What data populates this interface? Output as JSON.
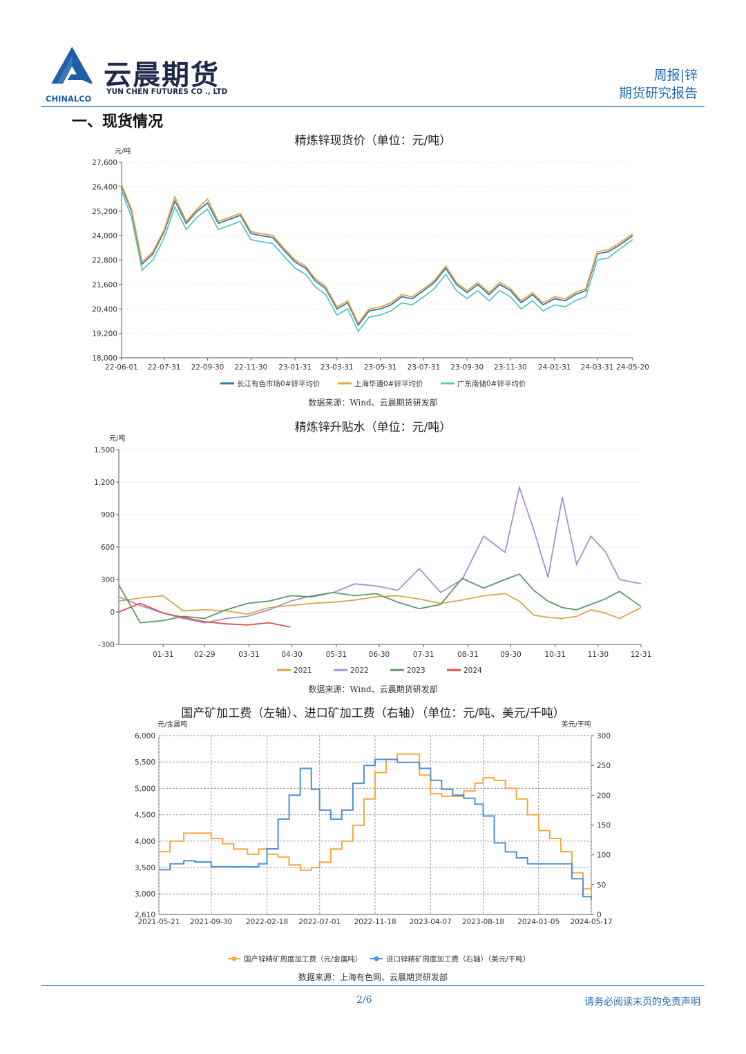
{
  "header": {
    "brand_cn": "云晨期货",
    "brand_en": "YUN CHEN FUTURES CO ., LTD",
    "brand_parent": "CHINALCO",
    "report_type": "周报|锌",
    "report_name": "期货研究报告"
  },
  "section_title": "一、现货情况",
  "charts": {
    "c1": {
      "title": "精炼锌现货价（单位：元/吨）",
      "source": "数据来源：Wind、云晨期货研发部"
    },
    "c2": {
      "title": "精炼锌升贴水（单位：元/吨）",
      "source": "数据来源：Wind、云晨期货研发部"
    },
    "c3": {
      "title": "国产矿加工费（左轴）、进口矿加工费（右轴）（单位：元/吨、美元/千吨）",
      "source": "数据来源：上海有色网、云晨期货研发部"
    }
  },
  "footer": {
    "page": "2/6",
    "note": "请务必阅读末页的免责声明"
  },
  "chart_data": [
    {
      "type": "line",
      "title": "精炼锌现货价（单位：元/吨）",
      "yunit": "元/吨",
      "ylim": [
        18000,
        27600
      ],
      "yticks": [
        18000,
        19200,
        20400,
        21600,
        22800,
        24000,
        25200,
        26400,
        27600
      ],
      "x_tick_labels": [
        "22-06-01",
        "22-07-31",
        "22-09-30",
        "22-11-30",
        "23-01-31",
        "23-03-31",
        "23-05-31",
        "23-07-31",
        "23-09-30",
        "23-11-30",
        "24-01-31",
        "24-03-31",
        "24-05-20"
      ],
      "x_dates": [
        "2022-06-01",
        "2022-06-15",
        "2022-06-30",
        "2022-07-15",
        "2022-07-31",
        "2022-08-15",
        "2022-08-31",
        "2022-09-15",
        "2022-09-30",
        "2022-10-15",
        "2022-10-31",
        "2022-11-15",
        "2022-11-30",
        "2022-12-15",
        "2022-12-31",
        "2023-01-15",
        "2023-01-31",
        "2023-02-15",
        "2023-02-28",
        "2023-03-15",
        "2023-03-31",
        "2023-04-15",
        "2023-04-30",
        "2023-05-15",
        "2023-05-31",
        "2023-06-15",
        "2023-06-30",
        "2023-07-15",
        "2023-07-31",
        "2023-08-15",
        "2023-08-31",
        "2023-09-15",
        "2023-09-30",
        "2023-10-15",
        "2023-10-31",
        "2023-11-15",
        "2023-11-30",
        "2023-12-15",
        "2023-12-31",
        "2024-01-15",
        "2024-01-31",
        "2024-02-15",
        "2024-02-29",
        "2024-03-15",
        "2024-03-31",
        "2024-04-15",
        "2024-04-30",
        "2024-05-20"
      ],
      "series": [
        {
          "name": "长江有色市场0#锌平均价",
          "color": "#2a7ab5",
          "values": [
            26400,
            25200,
            22600,
            23100,
            24200,
            25700,
            24600,
            25200,
            25600,
            24600,
            24800,
            25000,
            24100,
            24000,
            23900,
            23300,
            22700,
            22400,
            21800,
            21400,
            20400,
            20700,
            19600,
            20300,
            20400,
            20600,
            21000,
            20900,
            21300,
            21700,
            22400,
            21600,
            21200,
            21600,
            21100,
            21600,
            21300,
            20700,
            21100,
            20600,
            20900,
            20800,
            21100,
            21300,
            23100,
            23200,
            23500,
            24000
          ]
        },
        {
          "name": "上海华通0#锌平均价",
          "color": "#f2a23a",
          "values": [
            26500,
            25300,
            22700,
            23200,
            24300,
            25900,
            24700,
            25300,
            25800,
            24700,
            24900,
            25100,
            24200,
            24100,
            24000,
            23400,
            22800,
            22500,
            21900,
            21500,
            20500,
            20800,
            19700,
            20400,
            20500,
            20700,
            21100,
            21000,
            21400,
            21800,
            22500,
            21700,
            21300,
            21700,
            21200,
            21700,
            21400,
            20800,
            21200,
            20700,
            21000,
            20900,
            21200,
            21400,
            23200,
            23300,
            23600,
            24100
          ]
        },
        {
          "name": "广东南储0#锌平均价",
          "color": "#5cc6c0",
          "values": [
            26200,
            24900,
            22300,
            22800,
            23900,
            25400,
            24300,
            24900,
            25300,
            24300,
            24500,
            24700,
            23800,
            23700,
            23600,
            23000,
            22400,
            22100,
            21500,
            21100,
            20100,
            20400,
            19300,
            20000,
            20100,
            20300,
            20700,
            20600,
            21000,
            21400,
            22100,
            21300,
            20900,
            21300,
            20800,
            21300,
            21000,
            20400,
            20800,
            20300,
            20600,
            20500,
            20800,
            21000,
            22800,
            22900,
            23300,
            23800
          ]
        }
      ]
    },
    {
      "type": "line",
      "title": "精炼锌升贴水（单位：元/吨）",
      "yunit": "元/吨",
      "ylim": [
        -300,
        1500
      ],
      "yticks": [
        -300,
        0,
        300,
        600,
        900,
        1200,
        1500
      ],
      "x_tick_labels": [
        "01-31",
        "02-29",
        "03-31",
        "04-30",
        "05-31",
        "06-30",
        "07-31",
        "08-31",
        "09-30",
        "10-31",
        "11-30",
        "12-31"
      ],
      "x_days": [
        0,
        15,
        31,
        45,
        60,
        75,
        90,
        105,
        120,
        135,
        150,
        165,
        180,
        195,
        210,
        225,
        240,
        255,
        270,
        280,
        290,
        300,
        310,
        320,
        330,
        340,
        350,
        365
      ],
      "series": [
        {
          "name": "2021",
          "color": "#d4a843",
          "values": [
            100,
            130,
            150,
            10,
            20,
            10,
            -20,
            40,
            60,
            80,
            90,
            110,
            140,
            150,
            120,
            80,
            110,
            150,
            170,
            100,
            -30,
            -50,
            -60,
            -40,
            20,
            -10,
            -60,
            40
          ]
        },
        {
          "name": "2022",
          "color": "#a88dd0",
          "values": [
            140,
            60,
            -10,
            -60,
            -100,
            -60,
            -40,
            20,
            100,
            150,
            180,
            260,
            240,
            200,
            400,
            180,
            300,
            700,
            550,
            1150,
            760,
            320,
            1060,
            440,
            700,
            560,
            300,
            260
          ]
        },
        {
          "name": "2023",
          "color": "#5a9a62",
          "values": [
            250,
            -100,
            -80,
            -40,
            -60,
            20,
            80,
            100,
            150,
            140,
            180,
            150,
            170,
            90,
            30,
            70,
            310,
            220,
            300,
            350,
            200,
            100,
            40,
            20,
            70,
            120,
            190,
            50
          ]
        },
        {
          "name": "2024",
          "color": "#e05050",
          "values": [
            0,
            80,
            -10,
            -50,
            -90,
            -110,
            -120,
            -100,
            -140,
            null,
            null,
            null,
            null,
            null,
            null,
            null,
            null,
            null,
            null,
            null,
            null,
            null,
            null,
            null,
            null,
            null,
            null,
            null
          ]
        }
      ]
    },
    {
      "type": "line",
      "title": "国产矿加工费（左轴）、进口矿加工费（右轴）（单位：元/吨、美元/千吨）",
      "yunit_left": "元/金属吨",
      "yunit_right": "美元/干吨",
      "ylim_left": [
        2610,
        6000
      ],
      "yticks_left": [
        2610,
        3000,
        3500,
        4000,
        4500,
        5000,
        5500,
        6000
      ],
      "ylim_right": [
        0,
        300
      ],
      "yticks_right": [
        0,
        50,
        100,
        150,
        200,
        250,
        300
      ],
      "x_tick_labels": [
        "2021-05-21",
        "2021-09-30",
        "2022-02-18",
        "2022-07-01",
        "2022-11-18",
        "2023-04-07",
        "2023-08-18",
        "2024-01-05",
        "2024-05-17"
      ],
      "x_dates": [
        "2021-05-21",
        "2021-06-18",
        "2021-07-23",
        "2021-08-20",
        "2021-09-30",
        "2021-10-29",
        "2021-11-26",
        "2021-12-31",
        "2022-01-28",
        "2022-02-18",
        "2022-03-18",
        "2022-04-15",
        "2022-05-13",
        "2022-06-10",
        "2022-07-01",
        "2022-07-29",
        "2022-08-26",
        "2022-09-23",
        "2022-10-21",
        "2022-11-18",
        "2022-12-16",
        "2023-01-13",
        "2023-02-10",
        "2023-03-10",
        "2023-04-07",
        "2023-05-05",
        "2023-06-02",
        "2023-06-30",
        "2023-07-28",
        "2023-08-18",
        "2023-09-15",
        "2023-10-13",
        "2023-11-10",
        "2023-12-08",
        "2024-01-05",
        "2024-02-02",
        "2024-03-01",
        "2024-03-29",
        "2024-04-26",
        "2024-05-17"
      ],
      "series": [
        {
          "name": "国产锌精矿周度加工费（元/金属吨）",
          "axis": "left",
          "color": "#f2a93b",
          "values": [
            3800,
            4000,
            4150,
            4150,
            4050,
            3950,
            3850,
            3750,
            3850,
            3750,
            3700,
            3550,
            3450,
            3500,
            3600,
            3850,
            4000,
            4300,
            4800,
            5300,
            5550,
            5650,
            5650,
            5250,
            4900,
            4850,
            4850,
            4950,
            5100,
            5200,
            5150,
            5000,
            4800,
            4500,
            4200,
            4050,
            3800,
            3400,
            3100,
            2850
          ]
        },
        {
          "name": "进口锌精矿周度加工费（右轴）（美元/干吨）",
          "axis": "right",
          "color": "#4a90d9",
          "values": [
            75,
            85,
            90,
            88,
            80,
            80,
            80,
            80,
            85,
            110,
            160,
            200,
            245,
            210,
            175,
            160,
            175,
            220,
            250,
            260,
            260,
            255,
            255,
            245,
            225,
            210,
            200,
            195,
            185,
            165,
            120,
            105,
            95,
            85,
            85,
            85,
            85,
            60,
            30,
            25
          ]
        }
      ]
    }
  ]
}
